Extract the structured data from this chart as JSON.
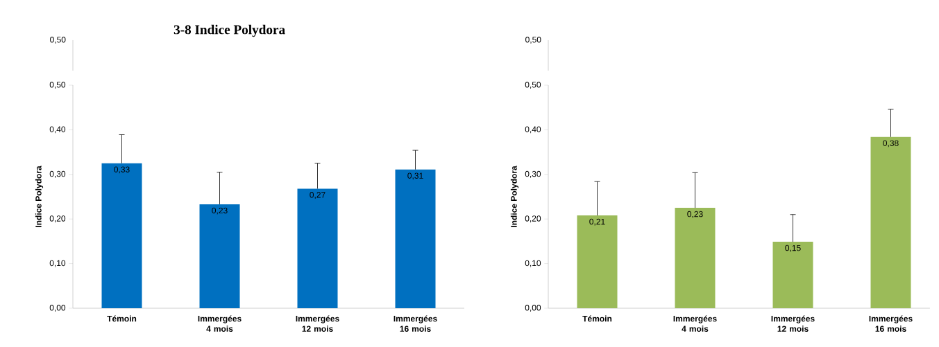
{
  "chart_data": [
    {
      "type": "other",
      "title": "3-8 Indice Polydora",
      "annotations": [
        "0,50"
      ]
    },
    {
      "type": "other",
      "annotations": [
        "0,50"
      ]
    },
    {
      "type": "bar",
      "ylabel": "Indice Polydora",
      "categories": [
        "Témoin",
        "Immergées 4 mois",
        "Immergées 12 mois",
        "Immergées 16 mois"
      ],
      "values": [
        0.325,
        0.233,
        0.268,
        0.311
      ],
      "color": "#0070c0",
      "errors": [
        [
          0.325,
          0.389
        ],
        [
          0.233,
          0.305
        ],
        [
          0.268,
          0.325
        ],
        [
          0.311,
          0.354
        ]
      ],
      "value_labels": [
        "0,33",
        "0,23",
        "0,27",
        "0,31"
      ],
      "ylim": [
        0,
        0.5
      ],
      "yticks": [
        {
          "value": 0,
          "label": "0,00"
        },
        {
          "value": 0.1,
          "label": "0,10"
        },
        {
          "value": 0.2,
          "label": "0,20"
        },
        {
          "value": 0.3,
          "label": "0,30"
        },
        {
          "value": 0.4,
          "label": "0,40"
        },
        {
          "value": 0.5,
          "label": "0,50"
        }
      ]
    },
    {
      "type": "bar",
      "ylabel": "Indice Polydora",
      "categories": [
        "Témoin",
        "Immergées 4 mois",
        "Immergées 12 mois",
        "Immergées 16 mois"
      ],
      "values": [
        0.208,
        0.225,
        0.149,
        0.384
      ],
      "color": "#9bbb59",
      "errors": [
        [
          0.208,
          0.284
        ],
        [
          0.225,
          0.304
        ],
        [
          0.149,
          0.21
        ],
        [
          0.384,
          0.446
        ]
      ],
      "value_labels": [
        "0,21",
        "0,23",
        "0,15",
        "0,38"
      ],
      "ylim": [
        0,
        0.5
      ],
      "yticks": [
        {
          "value": 0,
          "label": "0,00"
        },
        {
          "value": 0.1,
          "label": "0,10"
        },
        {
          "value": 0.2,
          "label": "0,20"
        },
        {
          "value": 0.3,
          "label": "0,30"
        },
        {
          "value": 0.4,
          "label": "0,40"
        },
        {
          "value": 0.5,
          "label": "0,50"
        }
      ]
    }
  ]
}
